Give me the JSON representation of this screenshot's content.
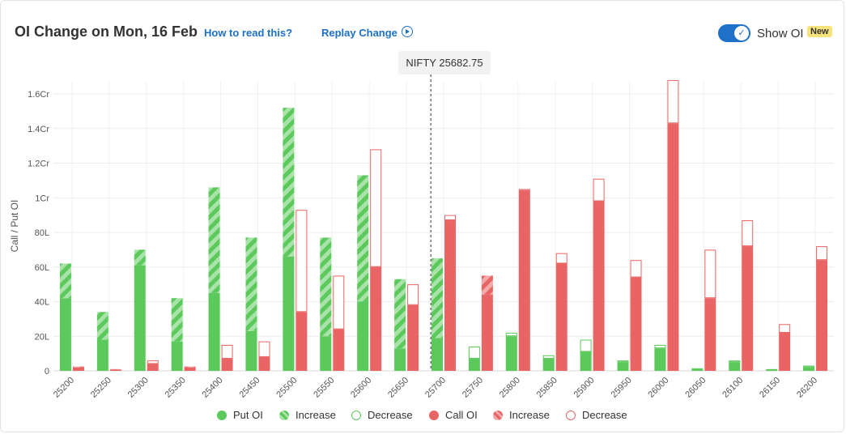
{
  "header": {
    "title": "OI Change on Mon, 16 Feb",
    "how_to_link": "How to read this?",
    "replay_link": "Replay Change",
    "toggle_label": "Show OI",
    "toggle_on": true,
    "badge": "New",
    "spot_label": "NIFTY 25682.75"
  },
  "colors": {
    "put": "#5cc95c",
    "put_hatch": "#a9e3a9",
    "call": "#e96565",
    "call_hatch": "#f3a9a9",
    "link": "#1e70c8"
  },
  "legend": [
    {
      "label": "Put OI",
      "kind": "put-solid"
    },
    {
      "label": "Increase",
      "kind": "put-increase"
    },
    {
      "label": "Decrease",
      "kind": "put-decrease"
    },
    {
      "label": "Call OI",
      "kind": "call-solid"
    },
    {
      "label": "Increase",
      "kind": "call-increase"
    },
    {
      "label": "Decrease",
      "kind": "call-decrease"
    }
  ],
  "chart_data": {
    "type": "bar",
    "ylabel": "Call / Put OI",
    "ylim": [
      0,
      1.6
    ],
    "yticks": [
      0,
      0.2,
      0.4,
      0.6,
      0.8,
      1.0,
      1.2,
      1.4,
      1.6
    ],
    "ytick_labels": [
      "0",
      "20L",
      "40L",
      "60L",
      "80L",
      "1Cr",
      "1.2Cr",
      "1.4Cr",
      "1.6Cr"
    ],
    "unit": "Cr",
    "spot": 25682.75,
    "categories": [
      "25200",
      "25250",
      "25300",
      "25350",
      "25400",
      "25450",
      "25500",
      "25550",
      "25600",
      "25650",
      "25700",
      "25750",
      "25800",
      "25850",
      "25900",
      "25950",
      "26000",
      "26050",
      "26100",
      "26150",
      "26200"
    ],
    "series": [
      {
        "name": "Put OI",
        "current": [
          0.62,
          0.34,
          0.7,
          0.42,
          1.06,
          0.77,
          1.52,
          0.77,
          1.13,
          0.53,
          0.65,
          0.07,
          0.2,
          0.07,
          0.11,
          0.05,
          0.13,
          0.01,
          0.05,
          0.01,
          0.02
        ],
        "previous": [
          0.42,
          0.18,
          0.61,
          0.17,
          0.45,
          0.23,
          0.66,
          0.2,
          0.4,
          0.13,
          0.19,
          0.14,
          0.22,
          0.09,
          0.18,
          0.06,
          0.15,
          0.015,
          0.06,
          0.01,
          0.03
        ]
      },
      {
        "name": "Call OI",
        "current": [
          0.025,
          0.01,
          0.04,
          0.025,
          0.07,
          0.08,
          0.34,
          0.24,
          0.6,
          0.38,
          0.87,
          0.55,
          1.04,
          0.62,
          0.98,
          0.54,
          1.43,
          0.42,
          0.72,
          0.22,
          0.64
        ],
        "previous": [
          0.02,
          0.008,
          0.06,
          0.02,
          0.15,
          0.17,
          0.93,
          0.55,
          1.28,
          0.5,
          0.9,
          0.44,
          1.05,
          0.68,
          1.11,
          0.64,
          1.68,
          0.7,
          0.87,
          0.27,
          0.72
        ]
      }
    ]
  }
}
